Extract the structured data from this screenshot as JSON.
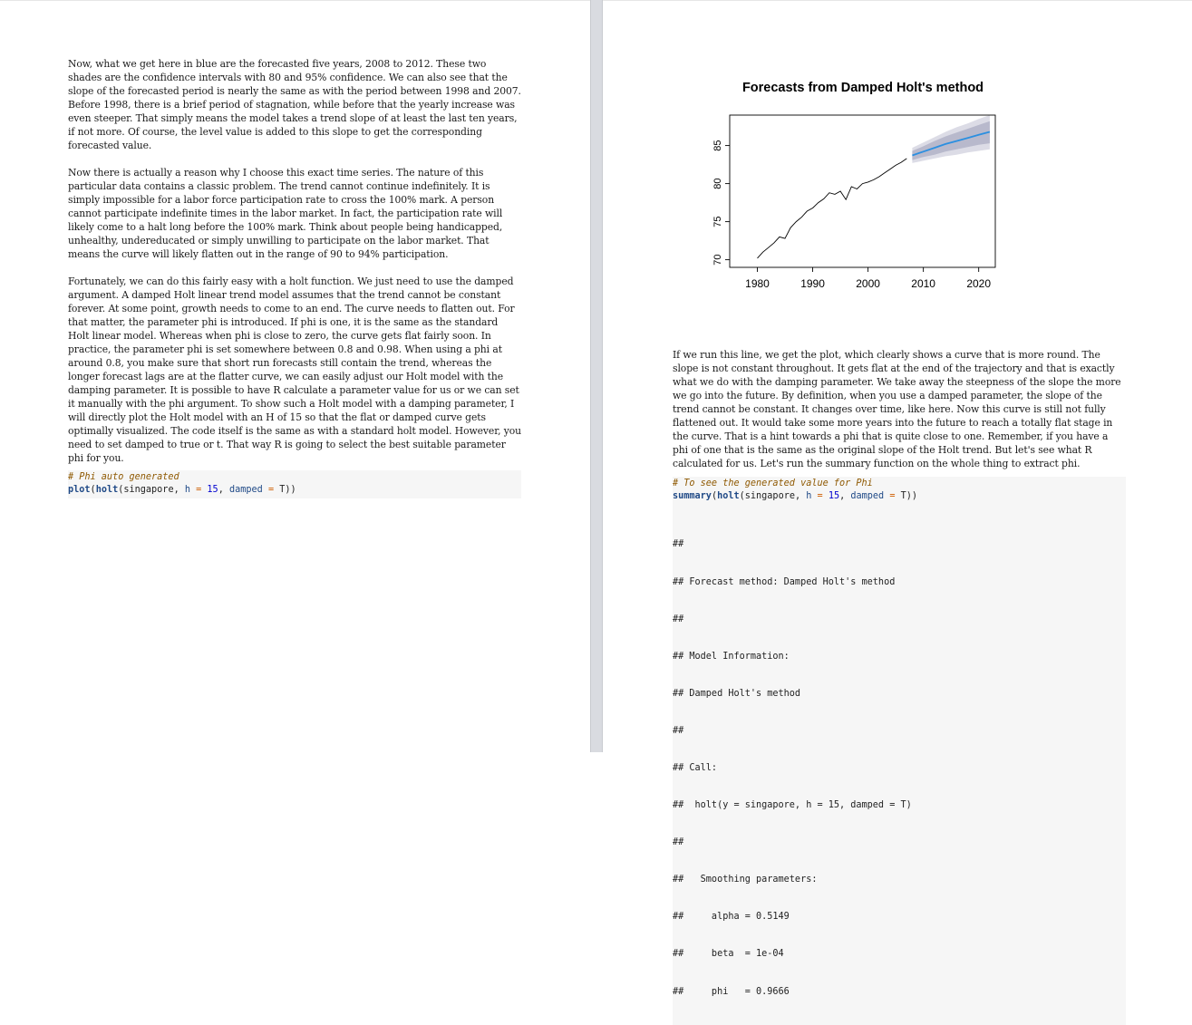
{
  "left_page": {
    "paragraphs": [
      "Now, what we get here in blue are the forecasted five years, 2008 to 2012. These two shades are the confidence intervals with 80 and 95% confidence. We can also see that the slope of the forecasted period is nearly the same as with the period between 1998 and 2007. Before 1998, there is a brief period of stagnation, while before that the yearly increase was even steeper. That simply means the model takes a trend slope of at least the last ten years, if not more. Of course, the level value is added to this slope to get the corresponding forecasted value.",
      "Now there is actually a reason why I choose this exact time series. The nature of this particular data contains a classic problem. The trend cannot continue indefinitely. It is simply impossible for a labor force participation rate to cross the 100% mark. A person cannot participate indefinite times in the labor market. In fact, the participation rate will likely come to a halt long before the 100% mark. Think about people being handicapped, unhealthy, undereducated or simply unwilling to participate on the labor market. That means the curve will likely flatten out in the range of 90 to 94% participation.",
      "Fortunately, we can do this fairly easy with a holt function. We just need to use the damped argument. A damped Holt linear trend model assumes that the trend cannot be constant forever. At some point, growth needs to come to an end. The curve needs to flatten out. For that matter, the parameter phi is introduced. If phi is one, it is the same as the standard Holt linear model. Whereas when phi is close to zero, the curve gets flat fairly soon. In practice, the parameter phi is set somewhere between 0.8 and 0.98. When using a phi at around 0.8, you make sure that short run forecasts still contain the trend, whereas the longer forecast lags are at the flatter curve, we can easily adjust our Holt model with the damping parameter. It is possible to have R calculate a parameter value for us or we can set it manually with the phi argument. To show such a Holt model with a damping parameter, I will directly plot the Holt model with an H of 15 so that the flat or damped curve gets optimally visualized. The code itself is the same as with a standard holt model. However, you need to set damped to true or t. That way R is going to select the best suitable parameter phi for you."
    ],
    "code": {
      "comment": "# Phi auto generated",
      "fn_plot": "plot",
      "fn_holt": "holt",
      "arg_obj": "singapore",
      "arg_h": "h",
      "h_value": "15",
      "arg_damped": "damped",
      "damped_value": "T"
    }
  },
  "right_page": {
    "chart_data": {
      "type": "line",
      "title": "Forecasts from Damped Holt's method",
      "xlabel": "",
      "ylabel": "",
      "xlim": [
        1975,
        2023
      ],
      "ylim": [
        69,
        89
      ],
      "x_ticks": [
        "1980",
        "1990",
        "2000",
        "2010",
        "2020"
      ],
      "y_ticks": [
        "70",
        "75",
        "80",
        "85"
      ],
      "series": [
        {
          "x": [
            1980,
            1981,
            1982,
            1983,
            1984,
            1985,
            1986,
            1987,
            1988,
            1989,
            1990,
            1991,
            1992,
            1993,
            1994,
            1995,
            1996,
            1997,
            1998,
            1999,
            2000,
            2001,
            2002,
            2003,
            2004,
            2005,
            2006,
            2007
          ],
          "values": [
            70.2,
            71.0,
            71.6,
            72.2,
            73.0,
            72.8,
            74.2,
            75.0,
            75.6,
            76.4,
            76.8,
            77.5,
            78.0,
            78.8,
            78.6,
            79.0,
            77.9,
            79.6,
            79.3,
            80.0,
            80.2,
            80.5,
            80.9,
            81.4,
            81.9,
            82.4,
            82.8,
            83.3
          ]
        }
      ],
      "forecast": {
        "x": [
          2008,
          2010,
          2012,
          2014,
          2016,
          2018,
          2020,
          2022
        ],
        "mean": [
          83.7,
          84.2,
          84.7,
          85.2,
          85.6,
          86.0,
          86.4,
          86.8
        ],
        "lo80": [
          83.1,
          83.5,
          83.8,
          84.2,
          84.5,
          84.8,
          85.1,
          85.3
        ],
        "hi80": [
          84.3,
          84.9,
          85.6,
          86.2,
          86.7,
          87.2,
          87.7,
          88.2
        ],
        "lo95": [
          82.7,
          83.0,
          83.3,
          83.6,
          83.8,
          84.1,
          84.3,
          84.5
        ],
        "hi95": [
          84.7,
          85.4,
          86.1,
          86.8,
          87.4,
          87.9,
          88.5,
          89.0
        ]
      },
      "colors": {
        "line": "#000000",
        "forecast_line": "#2b8fe0",
        "band80": "#b8b9cc",
        "band95": "#dcdce6"
      },
      "grid": false
    },
    "paragraphs": [
      "If we run this line, we get the plot, which clearly shows a curve that is more round. The slope is not constant throughout. It gets flat at the end of the trajectory and that is exactly what we do with the damping parameter. We take away the steepness of the slope the more we go into the future. By definition, when you use a damped parameter, the slope of the trend cannot be constant. It changes over time, like here. Now this curve is still not fully flattened out. It would take some more years into the future to reach a totally flat stage in the curve. That is a hint towards a phi that is quite close to one. Remember, if you have a phi of one that is the same as the original slope of the Holt trend. But let's see what R calculated for us. Let's run the summary function on the whole thing to extract phi."
    ],
    "code": {
      "comment": "# To see the generated value for Phi",
      "fn_summary": "summary",
      "fn_holt": "holt",
      "arg_obj": "singapore",
      "arg_h": "h",
      "h_value": "15",
      "arg_damped": "damped",
      "damped_value": "T"
    },
    "output_lines": [
      "##",
      "## Forecast method: Damped Holt's method",
      "##",
      "## Model Information:",
      "## Damped Holt's method",
      "##",
      "## Call:",
      "##  holt(y = singapore, h = 15, damped = T)",
      "##",
      "##   Smoothing parameters:",
      "##     alpha = 0.5149",
      "##     beta  = 1e-04",
      "##     phi   = 0.9666"
    ]
  }
}
